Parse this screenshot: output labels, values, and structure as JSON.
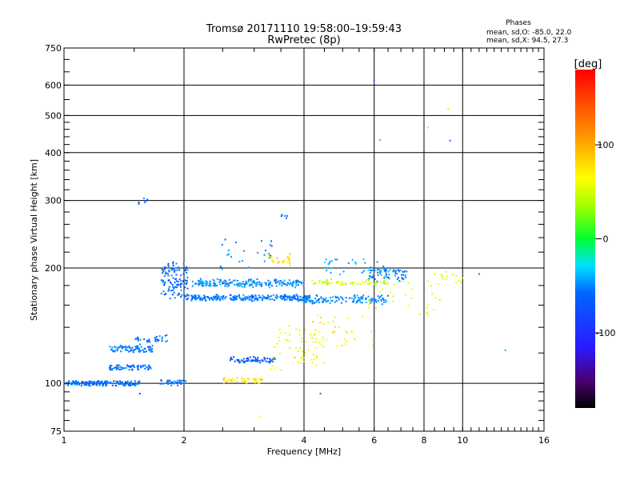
{
  "chart_data": {
    "type": "scatter",
    "title": "Tromsø 20171110 19:58:00–19:59:43",
    "subtitle": "RwPretec (8p)",
    "info": {
      "heading": "Phases",
      "line1": "mean, sd,O: -85.0, 22.0",
      "line2": "mean, sd,X:  94.5, 27.3"
    },
    "xlabel": "Frequency [MHz]",
    "ylabel": "Stationary phase Virtual Height [km]",
    "x_scale": "log",
    "y_scale": "log",
    "xlim": [
      1,
      16
    ],
    "ylim": [
      75,
      750
    ],
    "x_ticks": [
      1,
      2,
      4,
      6,
      8,
      10,
      16
    ],
    "x_tick_labels": [
      "1",
      "2",
      "4",
      "6",
      "8",
      "10",
      "16"
    ],
    "y_ticks": [
      75,
      100,
      200,
      300,
      400,
      500,
      600,
      750
    ],
    "y_tick_labels": [
      "75",
      "100",
      "200",
      "300",
      "400",
      "500",
      "600",
      "750"
    ],
    "grid": true,
    "colorbar": {
      "label": "[deg]",
      "range": [
        -180,
        180
      ],
      "ticks": [
        100,
        0,
        -100
      ],
      "tick_labels": [
        "100",
        "0",
        "-100"
      ]
    },
    "clusters": [
      {
        "f": [
          1.0,
          1.28
        ],
        "h": [
          100,
          100
        ],
        "n": 70,
        "phase": -95
      },
      {
        "f": [
          1.18,
          1.55
        ],
        "h": [
          100,
          100
        ],
        "n": 90,
        "phase": -95
      },
      {
        "f": [
          1.3,
          1.66
        ],
        "h": [
          110,
          110
        ],
        "n": 70,
        "phase": -92
      },
      {
        "f": [
          1.3,
          1.68
        ],
        "h": [
          122,
          124
        ],
        "n": 80,
        "phase": -88
      },
      {
        "f": [
          1.5,
          1.82
        ],
        "h": [
          128,
          133
        ],
        "n": 30,
        "phase": -92
      },
      {
        "f": [
          1.72,
          2.02
        ],
        "h": [
          100,
          101
        ],
        "n": 30,
        "phase": -92
      },
      {
        "f": [
          1.75,
          2.05
        ],
        "h": [
          168,
          205
        ],
        "n": 110,
        "phase": -95
      },
      {
        "f": [
          2.0,
          4.2
        ],
        "h": [
          166,
          168
        ],
        "n": 260,
        "phase": -90
      },
      {
        "f": [
          2.1,
          4.0
        ],
        "h": [
          180,
          185
        ],
        "n": 200,
        "phase": -80
      },
      {
        "f": [
          4.0,
          6.5
        ],
        "h": [
          163,
          168
        ],
        "n": 120,
        "phase": -82
      },
      {
        "f": [
          4.2,
          6.5
        ],
        "h": [
          182,
          185
        ],
        "n": 60,
        "phase": 60
      },
      {
        "f": [
          5.8,
          7.3
        ],
        "h": [
          185,
          200
        ],
        "n": 70,
        "phase": -85
      },
      {
        "f": [
          2.6,
          3.4
        ],
        "h": [
          114,
          116
        ],
        "n": 70,
        "phase": -105
      },
      {
        "f": [
          2.5,
          3.2
        ],
        "h": [
          101,
          103
        ],
        "n": 40,
        "phase": 108
      },
      {
        "f": [
          3.3,
          4.5
        ],
        "h": [
          108,
          140
        ],
        "n": 60,
        "phase": 90
      },
      {
        "f": [
          4.2,
          6.0
        ],
        "h": [
          125,
          150
        ],
        "n": 35,
        "phase": 100
      },
      {
        "f": [
          5.8,
          8.8
        ],
        "h": [
          150,
          185
        ],
        "n": 30,
        "phase": 80
      },
      {
        "f": [
          2.4,
          3.4
        ],
        "h": [
          200,
          235
        ],
        "n": 25,
        "phase": -90
      },
      {
        "f": [
          3.2,
          3.7
        ],
        "h": [
          205,
          215
        ],
        "n": 25,
        "phase": 110
      },
      {
        "f": [
          4.5,
          6.5
        ],
        "h": [
          195,
          210
        ],
        "n": 30,
        "phase": -60
      },
      {
        "f": [
          1.5,
          1.62
        ],
        "h": [
          295,
          300
        ],
        "n": 6,
        "phase": -95
      },
      {
        "f": [
          3.5,
          3.65
        ],
        "h": [
          272,
          274
        ],
        "n": 5,
        "phase": -95
      },
      {
        "f": [
          8.5,
          10.5
        ],
        "h": [
          180,
          195
        ],
        "n": 15,
        "phase": 80
      }
    ],
    "points": [
      {
        "f": 6.0,
        "h": 618,
        "phase": -100
      },
      {
        "f": 9.2,
        "h": 520,
        "phase": 110
      },
      {
        "f": 8.2,
        "h": 465,
        "phase": 120
      },
      {
        "f": 6.2,
        "h": 432,
        "phase": 150
      },
      {
        "f": 9.3,
        "h": 430,
        "phase": -100
      },
      {
        "f": 4.4,
        "h": 94,
        "phase": -100
      },
      {
        "f": 3.1,
        "h": 82,
        "phase": 100
      },
      {
        "f": 1.55,
        "h": 94,
        "phase": -110
      },
      {
        "f": 12.8,
        "h": 122,
        "phase": -60
      },
      {
        "f": 11.0,
        "h": 193,
        "phase": -90
      }
    ]
  }
}
